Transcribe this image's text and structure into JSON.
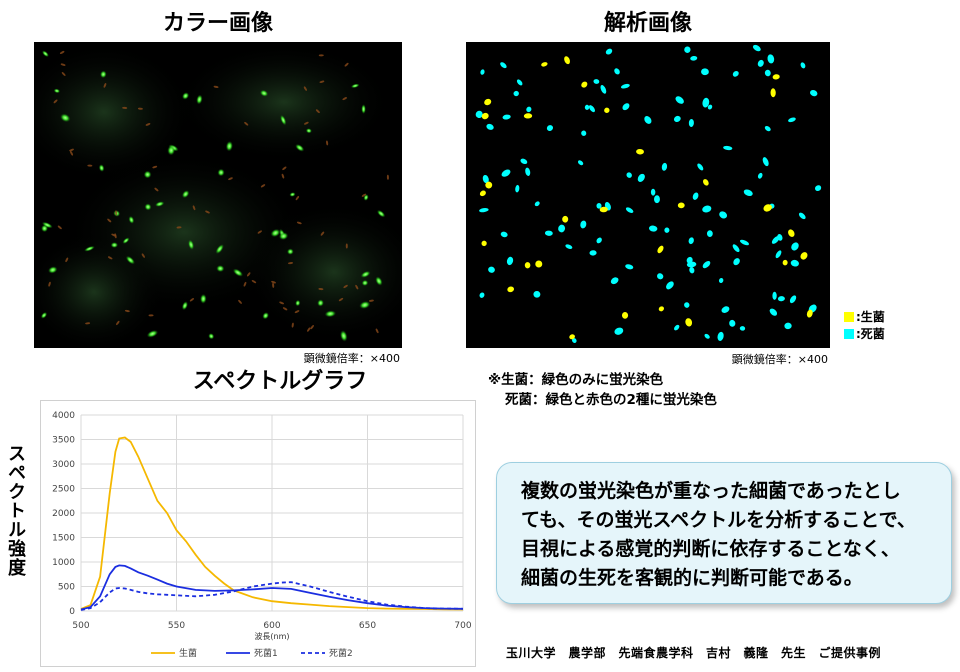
{
  "color_image": {
    "heading": "カラー画像",
    "magnification": "顕微鏡倍率：×400"
  },
  "analysis_image": {
    "heading": "解析画像",
    "magnification": "顕微鏡倍率：×400",
    "legend": [
      {
        "label": ":生菌",
        "color": "#ffff00"
      },
      {
        "label": ":死菌",
        "color": "#00ffff"
      }
    ]
  },
  "notes": [
    "※生菌：緑色のみに蛍光染色",
    "死菌：緑色と赤色の2種に蛍光染色"
  ],
  "spectrum": {
    "heading": "スペクトルグラフ",
    "ylabel": "スペクトル強度"
  },
  "callout": {
    "lines": [
      "複数の蛍光染色が重なった細菌であったとし",
      "ても、その蛍光スペクトルを分析することで、",
      "目視による感覚的判断に依存することなく、",
      "細菌の生死を客観的に判断可能である。"
    ]
  },
  "credit": "玉川大学　農学部　先端食農学科　吉村　義隆　先生　ご提供事例",
  "chart_data": {
    "type": "line",
    "title": "",
    "xlabel": "波長(nm)",
    "ylabel": "スペクトル強度",
    "xlim": [
      500,
      700
    ],
    "ylim": [
      0,
      4000
    ],
    "xticks": [
      500,
      550,
      600,
      650,
      700
    ],
    "yticks": [
      0,
      500,
      1000,
      1500,
      2000,
      2500,
      3000,
      3500,
      4000
    ],
    "grid": true,
    "legend_position": "bottom",
    "series": [
      {
        "name": "生菌",
        "color": "#f5b800",
        "dash": "solid",
        "x": [
          500,
          505,
          510,
          515,
          518,
          520,
          523,
          526,
          530,
          535,
          540,
          545,
          550,
          555,
          560,
          565,
          570,
          575,
          580,
          590,
          600,
          610,
          620,
          630,
          640,
          650,
          660,
          670,
          680,
          690,
          700
        ],
        "y": [
          40,
          120,
          700,
          2400,
          3250,
          3520,
          3540,
          3450,
          3150,
          2700,
          2250,
          2000,
          1650,
          1420,
          1150,
          900,
          720,
          560,
          420,
          280,
          200,
          160,
          130,
          100,
          80,
          60,
          50,
          45,
          40,
          35,
          30
        ]
      },
      {
        "name": "死菌1",
        "color": "#1b2ee0",
        "dash": "solid",
        "x": [
          500,
          505,
          510,
          515,
          518,
          520,
          523,
          526,
          530,
          535,
          540,
          545,
          550,
          560,
          570,
          580,
          590,
          600,
          610,
          620,
          630,
          640,
          650,
          660,
          670,
          680,
          690,
          700
        ],
        "y": [
          30,
          80,
          300,
          750,
          900,
          930,
          920,
          870,
          790,
          720,
          640,
          560,
          500,
          430,
          410,
          420,
          440,
          470,
          450,
          370,
          290,
          220,
          160,
          110,
          80,
          60,
          50,
          45
        ]
      },
      {
        "name": "死菌2",
        "color": "#1b2ee0",
        "dash": "dashed",
        "x": [
          500,
          505,
          510,
          515,
          518,
          520,
          523,
          526,
          530,
          535,
          540,
          545,
          550,
          560,
          570,
          580,
          590,
          600,
          605,
          610,
          620,
          630,
          640,
          650,
          660,
          670,
          680,
          690,
          700
        ],
        "y": [
          20,
          60,
          180,
          380,
          460,
          470,
          460,
          430,
          390,
          360,
          340,
          330,
          320,
          300,
          330,
          400,
          500,
          560,
          580,
          590,
          500,
          390,
          290,
          200,
          130,
          90,
          60,
          50,
          45
        ]
      }
    ]
  }
}
